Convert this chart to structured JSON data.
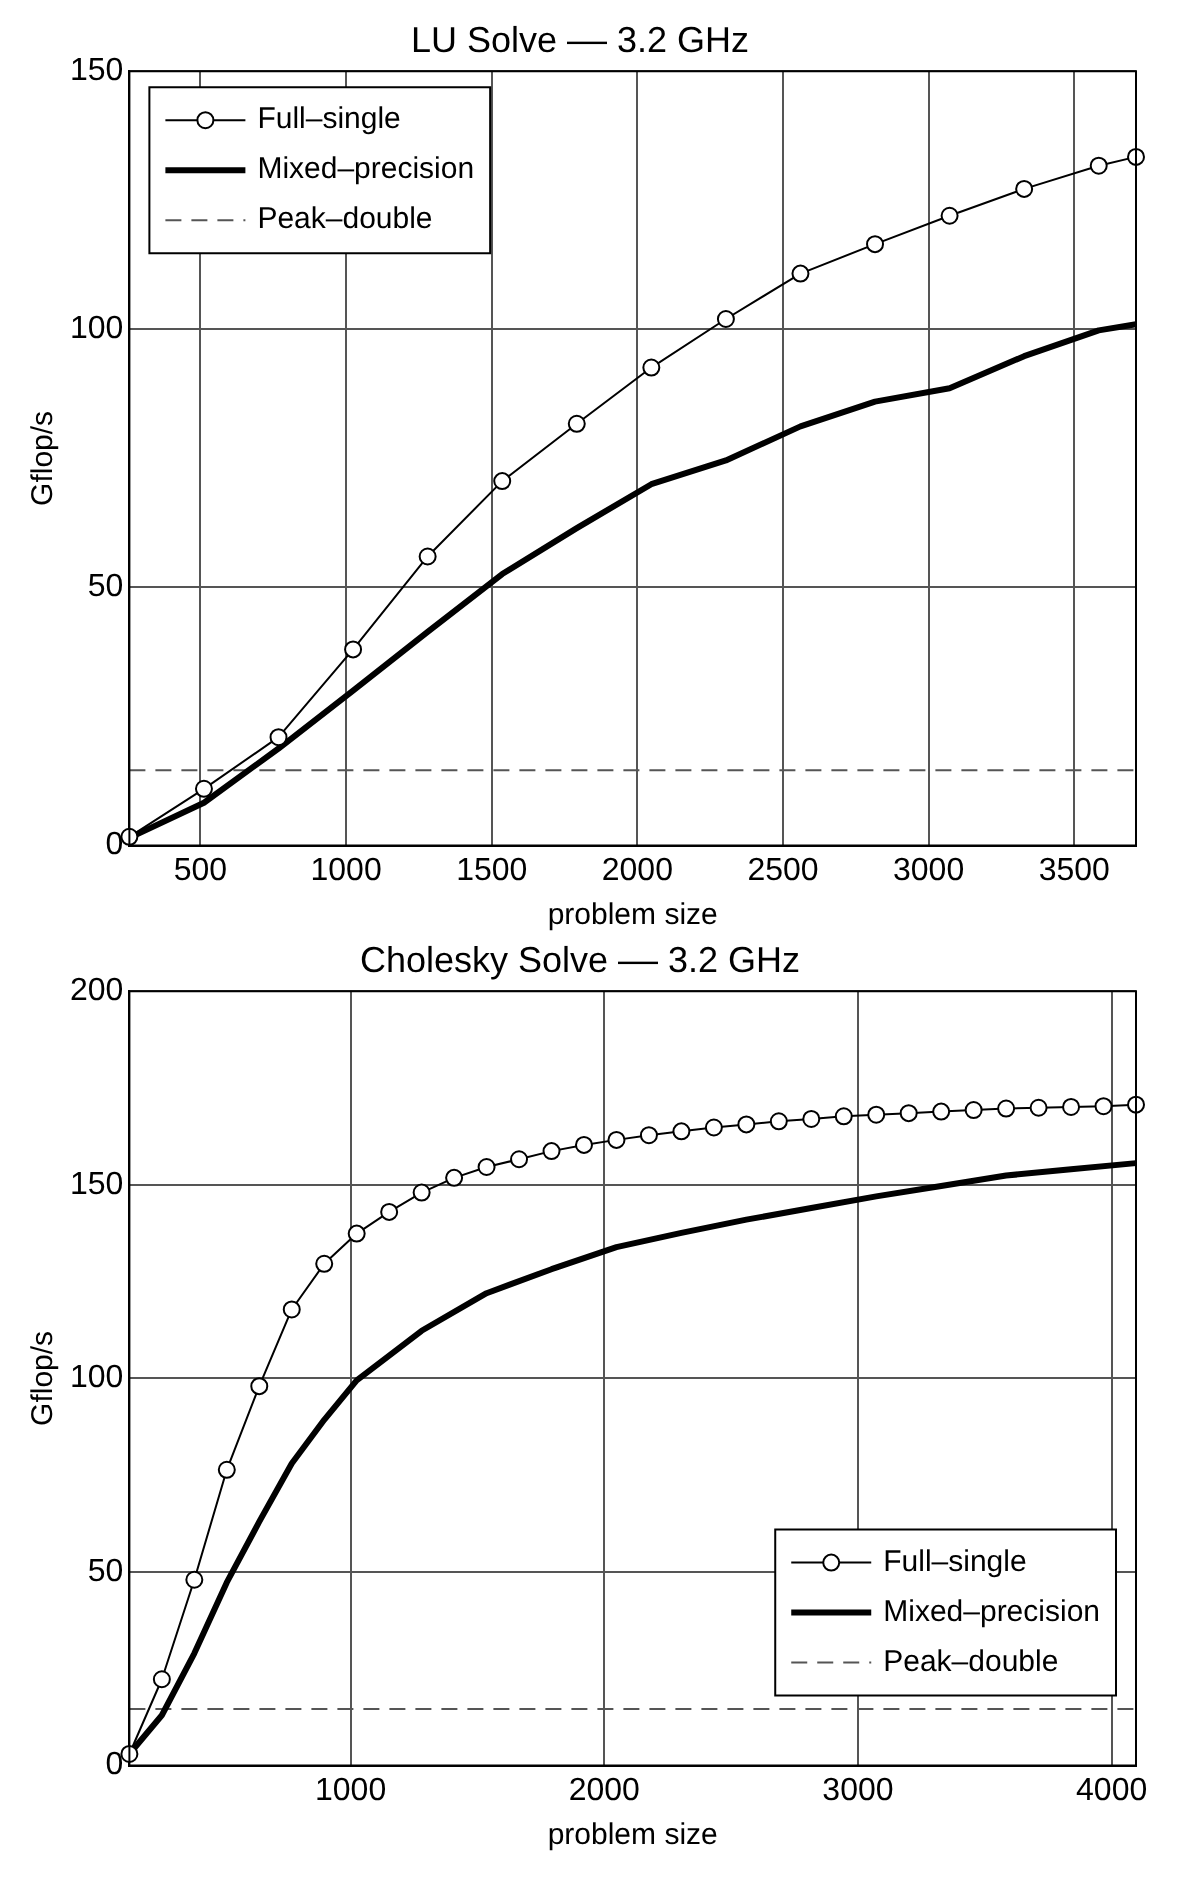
{
  "chart_data": [
    {
      "type": "line",
      "title": "LU Solve –– 3.2 GHz",
      "xlabel": "problem size",
      "ylabel": "Gflop/s",
      "xlim": [
        256,
        3712
      ],
      "xticks": [
        500,
        1000,
        1500,
        2000,
        2500,
        3000,
        3500
      ],
      "ylim": [
        0,
        150
      ],
      "yticks": [
        0,
        50,
        100,
        150
      ],
      "grid": true,
      "legend": "top left",
      "series": [
        {
          "name": "Full–single",
          "color": "#000000",
          "marker": "circle",
          "line_style": "solid",
          "x": [
            256,
            512,
            768,
            1024,
            1280,
            1536,
            1792,
            2048,
            2304,
            2560,
            2816,
            3072,
            3328,
            3584,
            3712
          ],
          "values": [
            1.7,
            11,
            21,
            38,
            56,
            70.6,
            81.7,
            92.6,
            102,
            110.8,
            116.5,
            122,
            127.2,
            131.7,
            133.4
          ]
        },
        {
          "name": "Mixed–precision",
          "color": "#000000",
          "marker": "none",
          "line_style": "solid",
          "x": [
            256,
            512,
            768,
            1024,
            1280,
            1536,
            1792,
            2048,
            2304,
            2560,
            2816,
            3072,
            3328,
            3584,
            3712
          ],
          "values": [
            1.5,
            8.3,
            18.8,
            30,
            41.4,
            52.6,
            61.5,
            70,
            74.6,
            81.2,
            86,
            88.6,
            94.8,
            99.8,
            101
          ]
        },
        {
          "name": "Peak–double",
          "color": "#555555",
          "marker": "none",
          "line_style": "dashed",
          "x": [
            256,
            3712
          ],
          "values": [
            14.6,
            14.6
          ]
        }
      ]
    },
    {
      "type": "line",
      "title": "Cholesky Solve –– 3.2 GHz",
      "xlabel": "problem size",
      "ylabel": "Gflop/s",
      "xlim": [
        128,
        4096
      ],
      "xticks": [
        1000,
        2000,
        3000,
        4000
      ],
      "ylim": [
        0,
        200
      ],
      "yticks": [
        0,
        50,
        100,
        150,
        200
      ],
      "grid": true,
      "legend": "bottom right",
      "series": [
        {
          "name": "Full–single",
          "color": "#000000",
          "marker": "circle",
          "line_style": "solid",
          "x": [
            128,
            256,
            384,
            512,
            640,
            768,
            896,
            1024,
            1152,
            1280,
            1408,
            1536,
            1664,
            1792,
            1920,
            2048,
            2176,
            2304,
            2432,
            2560,
            2688,
            2816,
            2944,
            3072,
            3200,
            3328,
            3456,
            3584,
            3712,
            3840,
            3968,
            4096
          ],
          "values": [
            3,
            22.3,
            48,
            76.4,
            98,
            117.8,
            129.6,
            137.4,
            143,
            148,
            151.8,
            154.6,
            156.6,
            158.7,
            160.3,
            161.6,
            162.8,
            163.8,
            164.8,
            165.6,
            166.4,
            167,
            167.7,
            168.1,
            168.5,
            168.9,
            169.3,
            169.7,
            169.9,
            170.1,
            170.3,
            170.7
          ]
        },
        {
          "name": "Mixed–precision",
          "color": "#000000",
          "marker": "none",
          "line_style": "solid",
          "x": [
            128,
            256,
            384,
            512,
            640,
            768,
            896,
            1024,
            1280,
            1536,
            1792,
            2048,
            2304,
            2560,
            2816,
            3072,
            3328,
            3584,
            3840,
            4096
          ],
          "values": [
            3,
            13,
            29,
            47.3,
            63,
            78,
            89.3,
            99.5,
            112.3,
            122,
            128.2,
            133.9,
            137.6,
            141,
            144,
            147,
            149.7,
            152.4,
            154,
            155.6
          ]
        },
        {
          "name": "Peak–double",
          "color": "#555555",
          "marker": "none",
          "line_style": "dashed",
          "x": [
            128,
            4096
          ],
          "values": [
            14.6,
            14.6
          ]
        }
      ]
    }
  ]
}
